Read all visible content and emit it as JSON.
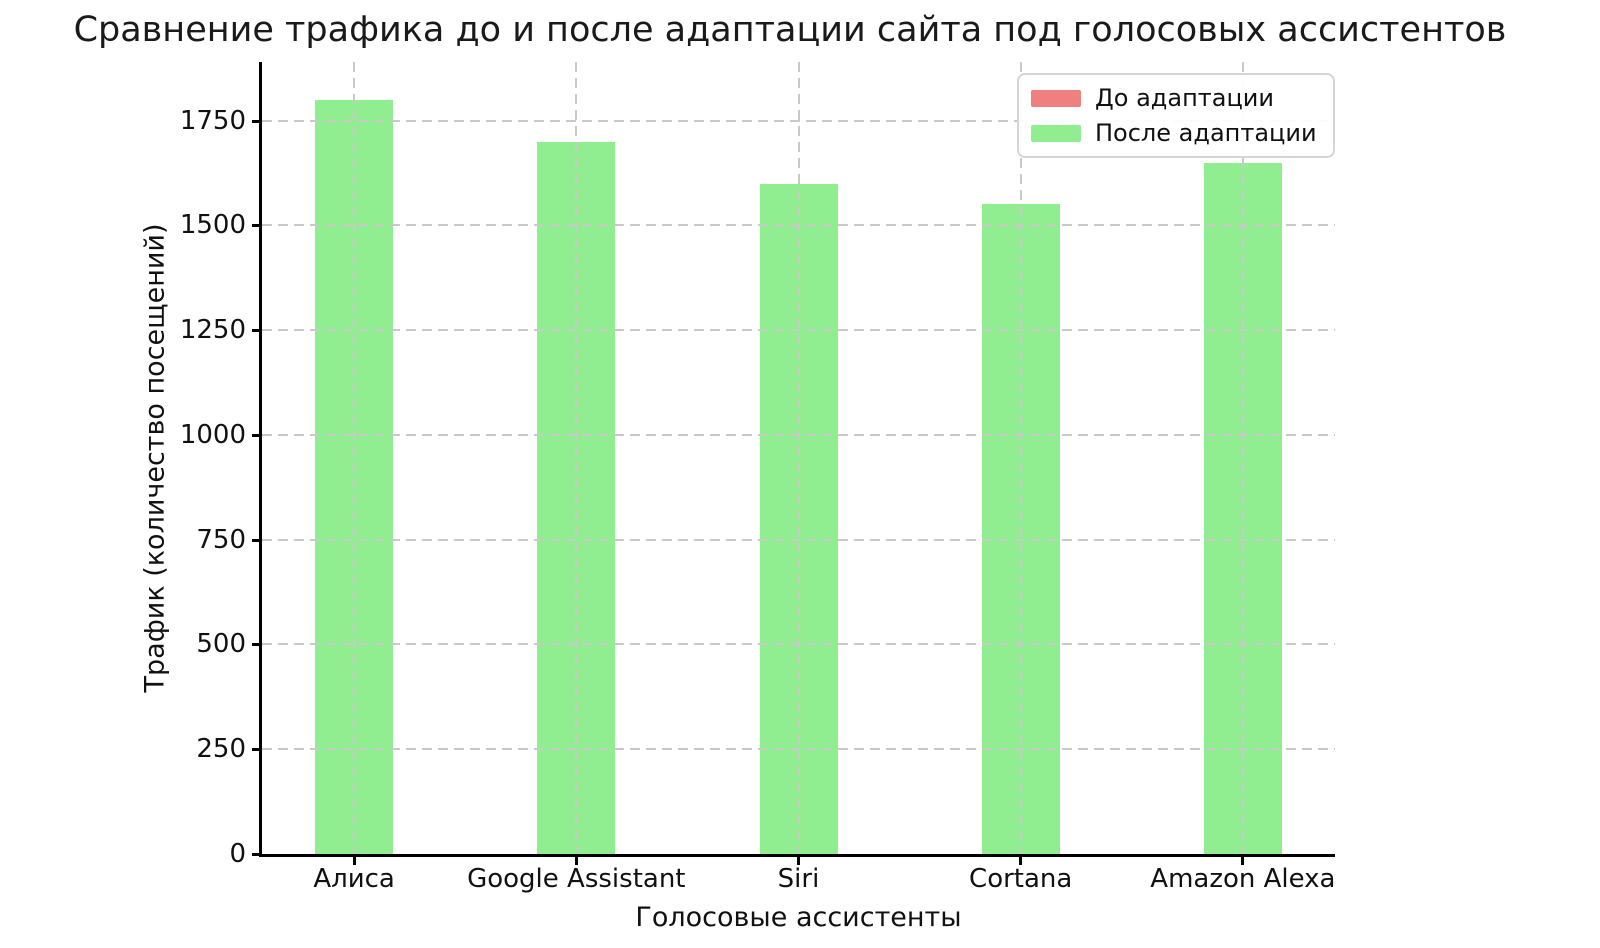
{
  "title": "Сравнение трафика до и после адаптации сайта под голосовых ассистентов",
  "chart_data": {
    "type": "bar",
    "categories": [
      "Алиса",
      "Google Assistant",
      "Siri",
      "Cortana",
      "Amazon Alexa"
    ],
    "series": [
      {
        "name": "До адаптации",
        "color": "#F08080",
        "values": null,
        "note": "bars not visible — fully hidden behind the 'После адаптации' bars drawn at the same x positions"
      },
      {
        "name": "После адаптации",
        "color": "#90EE90",
        "values": [
          1800,
          1700,
          1600,
          1550,
          1650
        ]
      }
    ],
    "xlabel": "Голосовые ассистенты",
    "ylabel": "Трафик (количество посещений)",
    "yticks": [
      0,
      250,
      500,
      750,
      1000,
      1250,
      1500,
      1750
    ],
    "ylim": [
      0,
      1890
    ],
    "grid": "both axes, dashed light gray, drawn above bars",
    "gridline_color": "#c9c9c9",
    "legend_position": "upper right",
    "background_color": "#ffffff"
  }
}
